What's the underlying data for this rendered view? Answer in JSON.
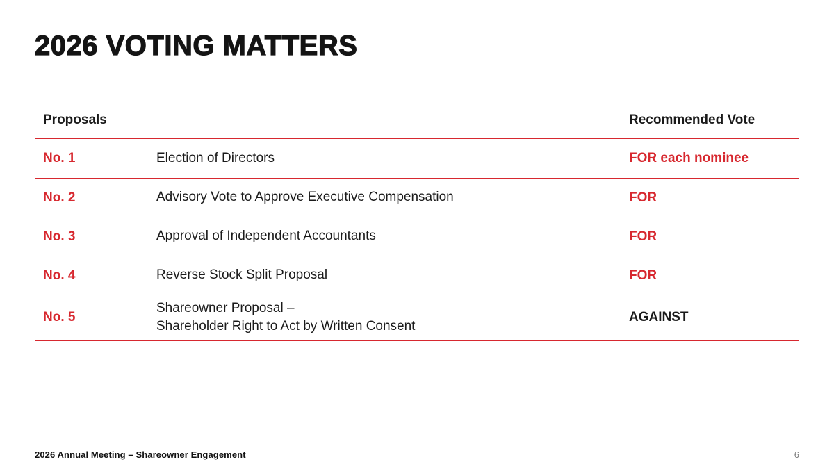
{
  "slide": {
    "title": "2026 VOTING MATTERS",
    "accent_color": "#D7282F"
  },
  "table": {
    "headers": {
      "proposals": "Proposals",
      "recommended_vote": "Recommended Vote"
    },
    "rows": [
      {
        "number": "No. 1",
        "description": "Election of Directors",
        "vote": "FOR each nominee",
        "vote_style": "accent"
      },
      {
        "number": "No. 2",
        "description": "Advisory Vote to Approve Executive Compensation",
        "vote": "FOR",
        "vote_style": "accent"
      },
      {
        "number": "No. 3",
        "description": "Approval of Independent Accountants",
        "vote": "FOR",
        "vote_style": "accent"
      },
      {
        "number": "No. 4",
        "description": "Reverse Stock Split Proposal",
        "vote": "FOR",
        "vote_style": "accent"
      },
      {
        "number": "No. 5",
        "description": "Shareowner Proposal –\nShareholder Right to Act by Written Consent",
        "vote": "AGAINST",
        "vote_style": "dark"
      }
    ]
  },
  "footer": {
    "left": "2026 Annual Meeting – Shareowner Engagement",
    "page_number": "6"
  }
}
